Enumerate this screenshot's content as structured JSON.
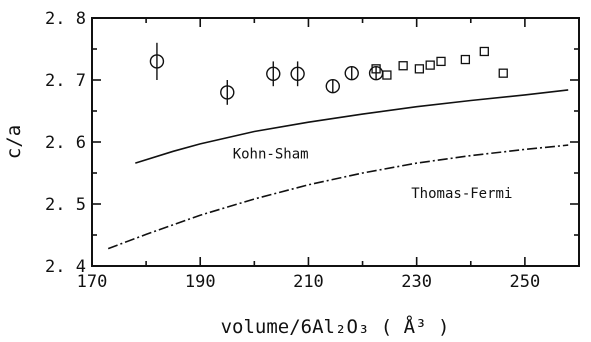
{
  "chart_data": {
    "type": "scatter",
    "xlabel": "volume/6Al₂O₃  ( Å³ )",
    "ylabel": "c/a",
    "xlim": [
      170,
      260
    ],
    "ylim": [
      2.4,
      2.8
    ],
    "x_ticks": [
      170,
      190,
      210,
      230,
      250
    ],
    "y_ticks": [
      2.4,
      2.5,
      2.6,
      2.7,
      2.8
    ],
    "x_tick_labels": [
      "170",
      "190",
      "210",
      "230",
      "250"
    ],
    "y_tick_labels": [
      "2. 4",
      "2. 5",
      "2. 6",
      "2. 7",
      "2. 8"
    ],
    "grid": false,
    "series": [
      {
        "marker": "circle",
        "error_bars": true,
        "points": [
          {
            "x": 182,
            "y": 2.73,
            "err": 0.03
          },
          {
            "x": 195,
            "y": 2.68,
            "err": 0.02
          },
          {
            "x": 203.5,
            "y": 2.71,
            "err": 0.02
          },
          {
            "x": 208,
            "y": 2.71,
            "err": 0.02
          },
          {
            "x": 214.5,
            "y": 2.69,
            "err": 0.01
          },
          {
            "x": 218,
            "y": 2.711,
            "err": 0.01
          },
          {
            "x": 222.5,
            "y": 2.711,
            "err": 0.01
          }
        ]
      },
      {
        "marker": "square",
        "points": [
          {
            "x": 222.5,
            "y": 2.718
          },
          {
            "x": 224.5,
            "y": 2.708
          },
          {
            "x": 227.5,
            "y": 2.723
          },
          {
            "x": 230.5,
            "y": 2.718
          },
          {
            "x": 232.5,
            "y": 2.724
          },
          {
            "x": 234.5,
            "y": 2.73
          },
          {
            "x": 239,
            "y": 2.733
          },
          {
            "x": 242.5,
            "y": 2.746
          },
          {
            "x": 246,
            "y": 2.711
          }
        ]
      },
      {
        "name": "Kohn-Sham",
        "line": "solid",
        "points": [
          {
            "x": 178,
            "y": 2.566
          },
          {
            "x": 185,
            "y": 2.585
          },
          {
            "x": 190,
            "y": 2.597
          },
          {
            "x": 200,
            "y": 2.617
          },
          {
            "x": 210,
            "y": 2.632
          },
          {
            "x": 220,
            "y": 2.645
          },
          {
            "x": 230,
            "y": 2.657
          },
          {
            "x": 240,
            "y": 2.667
          },
          {
            "x": 250,
            "y": 2.676
          },
          {
            "x": 258,
            "y": 2.684
          }
        ]
      },
      {
        "name": "Thomas-Fermi",
        "line": "dashdot",
        "points": [
          {
            "x": 173,
            "y": 2.428
          },
          {
            "x": 180,
            "y": 2.451
          },
          {
            "x": 190,
            "y": 2.482
          },
          {
            "x": 200,
            "y": 2.508
          },
          {
            "x": 210,
            "y": 2.531
          },
          {
            "x": 220,
            "y": 2.55
          },
          {
            "x": 230,
            "y": 2.566
          },
          {
            "x": 240,
            "y": 2.578
          },
          {
            "x": 250,
            "y": 2.588
          },
          {
            "x": 258,
            "y": 2.595
          }
        ]
      }
    ],
    "annotations": [
      {
        "text": "Kohn-Sham",
        "x": 196,
        "y": 2.573
      },
      {
        "text": "Thomas-Fermi",
        "x": 229,
        "y": 2.51
      }
    ]
  }
}
